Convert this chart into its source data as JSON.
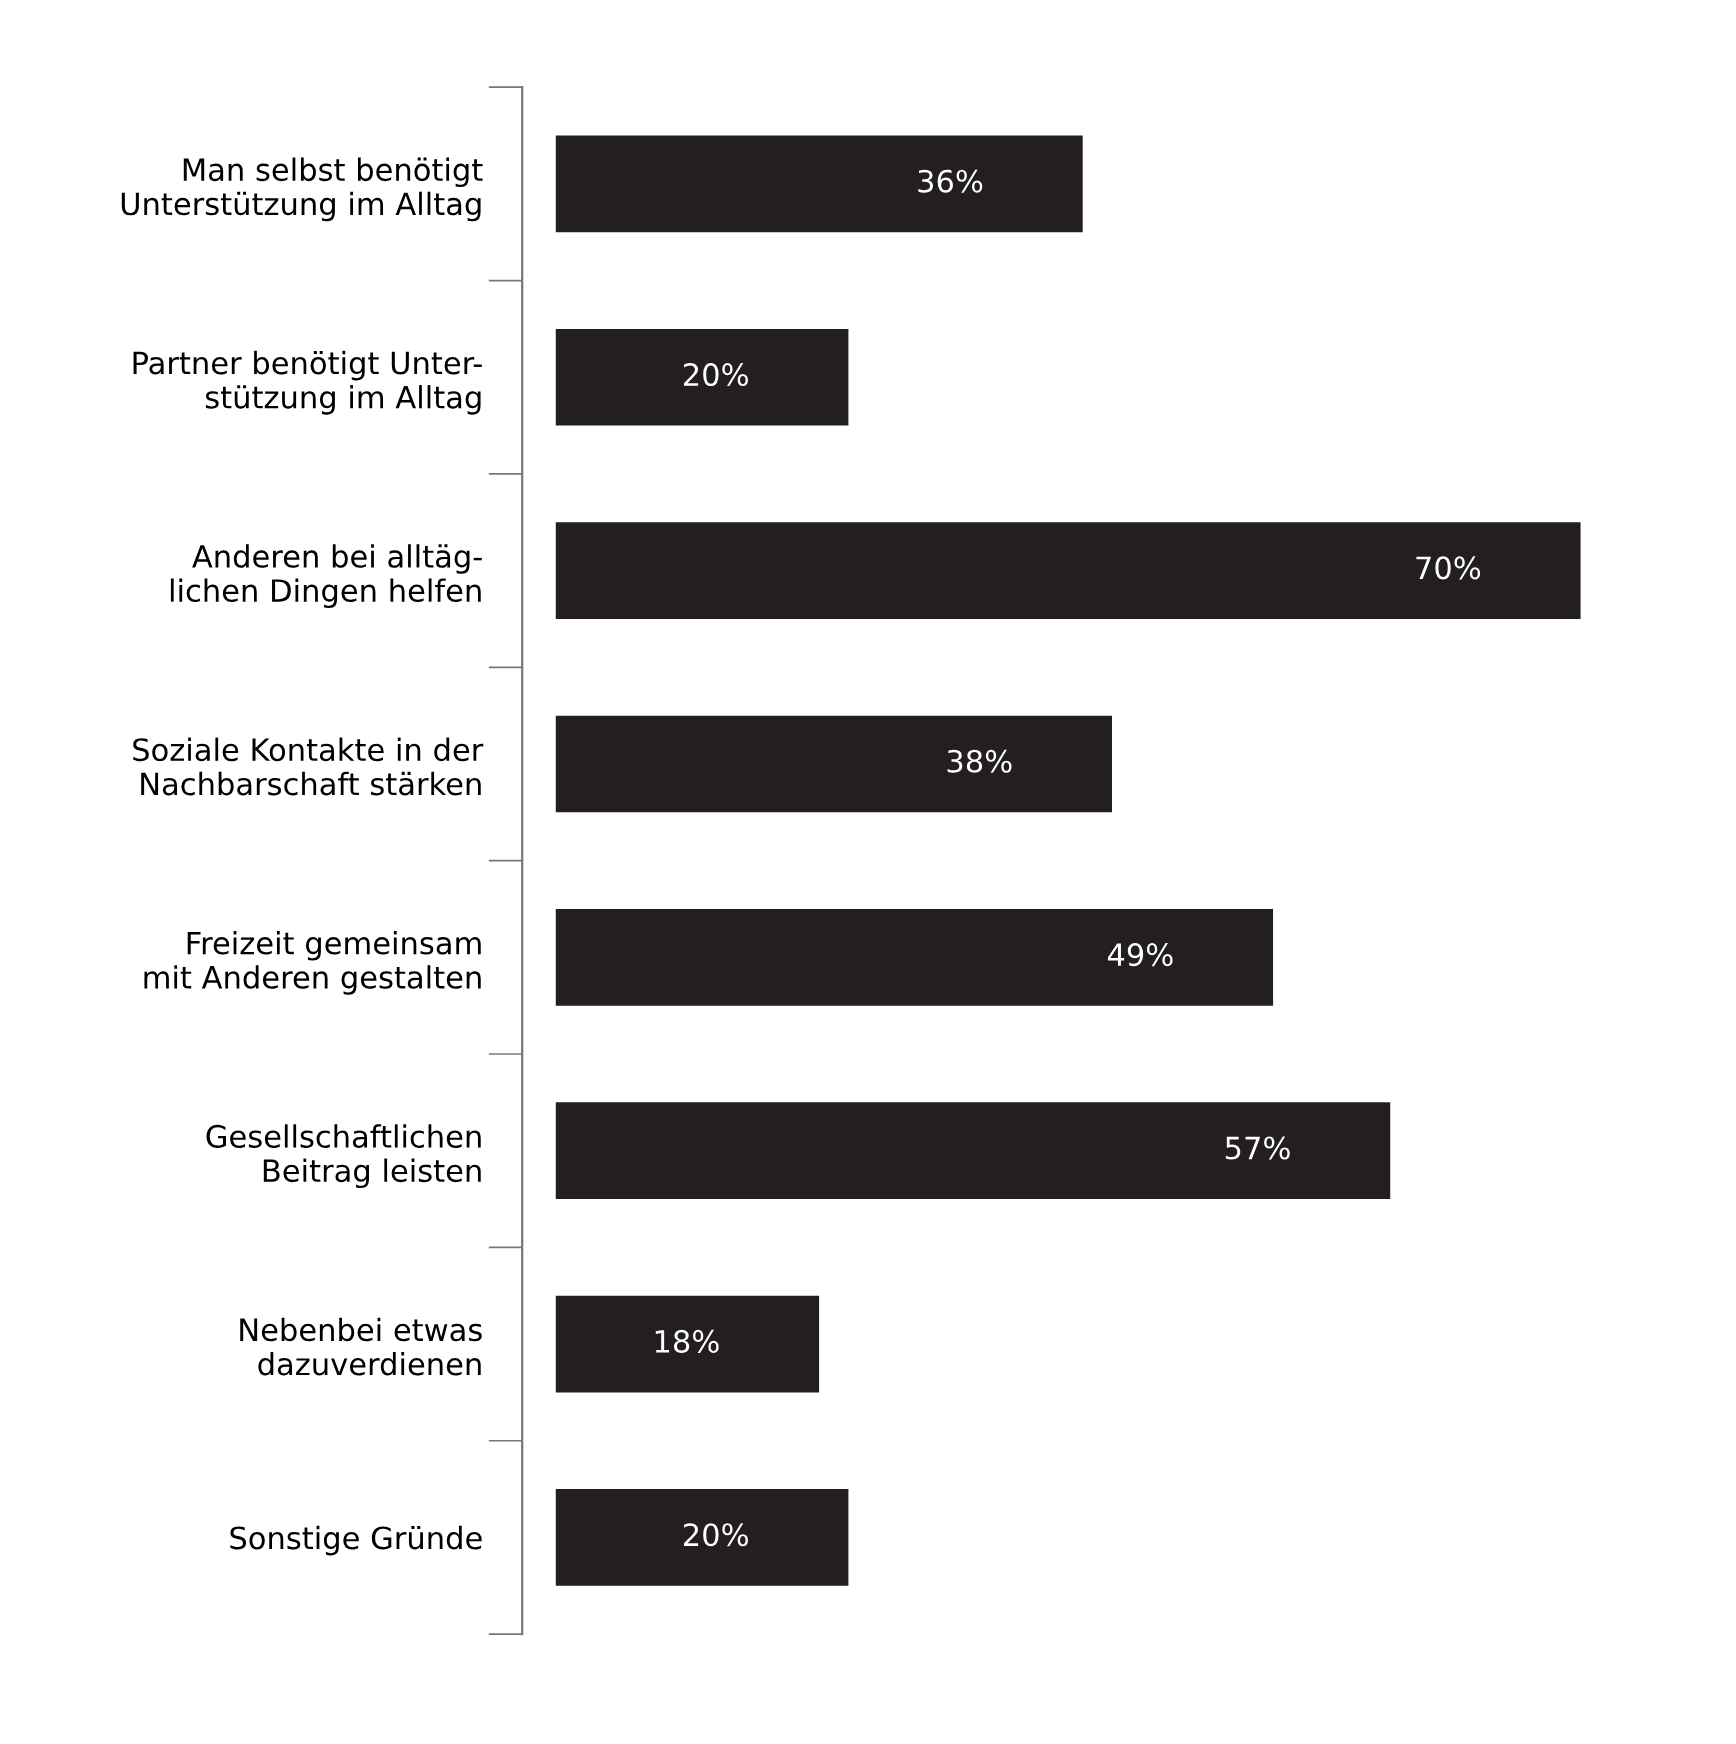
{
  "chart_data": {
    "type": "bar",
    "orientation": "horizontal",
    "categories": [
      "Man selbst benötigt\nUnterstützung im Alltag",
      "Partner benötigt Unter-\nstützung im Alltag",
      "Anderen bei alltäg-\nlichen Dingen helfen",
      "Soziale Kontakte in der\nNachbarschaft stärken",
      "Freizeit gemeinsam\nmit Anderen gestalten",
      "Gesellschaftlichen\nBeitrag leisten",
      "Nebenbei etwas\ndazuverdienen",
      "Sonstige Gründe"
    ],
    "values": [
      36,
      20,
      70,
      38,
      49,
      57,
      18,
      20
    ],
    "value_labels": [
      "36%",
      "20%",
      "70%",
      "38%",
      "49%",
      "57%",
      "18%",
      "20%"
    ],
    "color": "#231f20",
    "grid": false,
    "legend": false,
    "tick_labels": "y"
  }
}
